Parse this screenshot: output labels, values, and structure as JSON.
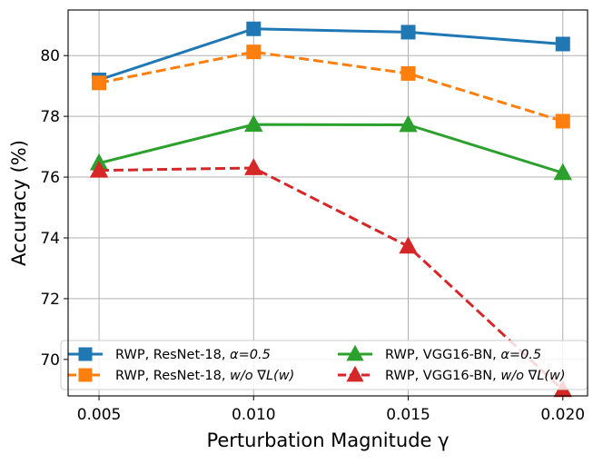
{
  "chart_data": {
    "type": "line",
    "title": "",
    "xlabel": "Perturbation Magnitude γ",
    "ylabel": "Accuracy (%)",
    "x": [
      0.005,
      0.01,
      0.015,
      0.02
    ],
    "xticks": [
      "0.005",
      "0.010",
      "0.015",
      "0.020"
    ],
    "yticks": [
      "70",
      "72",
      "74",
      "76",
      "78",
      "80"
    ],
    "xlim": [
      0.004,
      0.0208
    ],
    "ylim": [
      68.8,
      81.5
    ],
    "grid": true,
    "legend_position": "lower-center",
    "series": [
      {
        "key": "resnet_rwp",
        "name": "RWP, ResNet-18, α=0.5",
        "name_prefix": "RWP, ResNet-18, ",
        "name_suffix": "α=0.5",
        "values": [
          79.2,
          80.88,
          80.77,
          80.38
        ],
        "color": "#1f77b4",
        "linestyle": "solid",
        "marker": "square"
      },
      {
        "key": "resnet_nograd",
        "name": "RWP, ResNet-18, w/o ∇L(w)",
        "name_prefix": "RWP, ResNet-18, ",
        "name_suffix": "w/o ∇L(w)",
        "values": [
          79.1,
          80.12,
          79.41,
          77.84
        ],
        "color": "#ff7f0e",
        "linestyle": "dashed",
        "marker": "square"
      },
      {
        "key": "vgg_rwp",
        "name": "RWP, VGG16-BN, α=0.5",
        "name_prefix": "RWP, VGG16-BN, ",
        "name_suffix": "α=0.5",
        "values": [
          76.46,
          77.73,
          77.72,
          76.14
        ],
        "color": "#2ca02c",
        "linestyle": "solid",
        "marker": "triangle"
      },
      {
        "key": "vgg_nograd",
        "name": "RWP, VGG16-BN, w/o ∇L(w)",
        "name_prefix": "RWP, VGG16-BN, ",
        "name_suffix": "w/o ∇L(w)",
        "values": [
          76.22,
          76.3,
          73.72,
          69.0
        ],
        "color": "#d62728",
        "linestyle": "dashed",
        "marker": "triangle"
      }
    ]
  }
}
